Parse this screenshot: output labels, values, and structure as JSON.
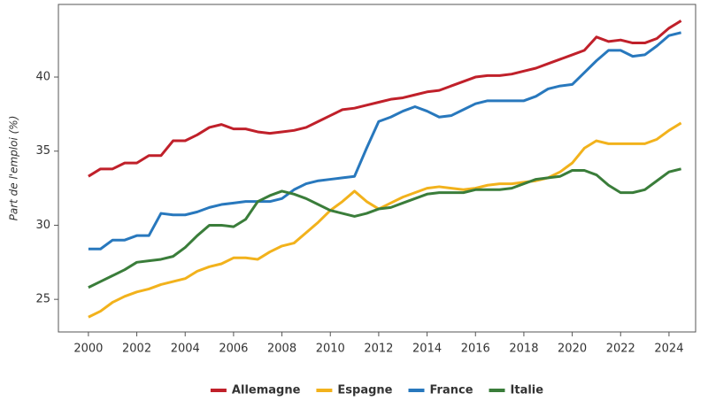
{
  "chart_data": {
    "type": "line",
    "y_label": "Part de l'emploi (%)",
    "x": [
      2000,
      2000.5,
      2001,
      2001.5,
      2002,
      2002.5,
      2003,
      2003.5,
      2004,
      2004.5,
      2005,
      2005.5,
      2006,
      2006.5,
      2007,
      2007.5,
      2008,
      2008.5,
      2009,
      2009.5,
      2010,
      2010.5,
      2011,
      2011.5,
      2012,
      2012.5,
      2013,
      2013.5,
      2014,
      2014.5,
      2015,
      2015.5,
      2016,
      2016.5,
      2017,
      2017.5,
      2018,
      2018.5,
      2019,
      2019.5,
      2020,
      2020.5,
      2021,
      2021.5,
      2022,
      2022.5,
      2023,
      2023.5,
      2024,
      2024.5
    ],
    "series": [
      {
        "name": "Allemagne",
        "color": "#c0202a",
        "values": [
          33.3,
          33.8,
          33.8,
          34.2,
          34.2,
          34.7,
          34.7,
          35.7,
          35.7,
          36.1,
          36.6,
          36.8,
          36.5,
          36.5,
          36.3,
          36.2,
          36.3,
          36.4,
          36.6,
          37.0,
          37.4,
          37.8,
          37.9,
          38.1,
          38.3,
          38.5,
          38.6,
          38.8,
          39.0,
          39.1,
          39.4,
          39.7,
          40.0,
          40.1,
          40.1,
          40.2,
          40.4,
          40.6,
          40.9,
          41.2,
          41.5,
          41.8,
          42.7,
          42.4,
          42.5,
          42.3,
          42.3,
          42.6,
          43.3,
          43.8
        ]
      },
      {
        "name": "Espagne",
        "color": "#f2b21c",
        "values": [
          23.8,
          24.2,
          24.8,
          25.2,
          25.5,
          25.7,
          26.0,
          26.2,
          26.4,
          26.9,
          27.2,
          27.4,
          27.8,
          27.8,
          27.7,
          28.2,
          28.6,
          28.8,
          29.5,
          30.2,
          31.0,
          31.6,
          32.3,
          31.6,
          31.1,
          31.5,
          31.9,
          32.2,
          32.5,
          32.6,
          32.5,
          32.4,
          32.5,
          32.7,
          32.8,
          32.8,
          32.9,
          33.0,
          33.2,
          33.6,
          34.2,
          35.2,
          35.7,
          35.5,
          35.5,
          35.5,
          35.5,
          35.8,
          36.4,
          36.9
        ]
      },
      {
        "name": "France",
        "color": "#2878bd",
        "values": [
          28.4,
          28.4,
          29.0,
          29.0,
          29.3,
          29.3,
          30.8,
          30.7,
          30.7,
          30.9,
          31.2,
          31.4,
          31.5,
          31.6,
          31.6,
          31.6,
          31.8,
          32.4,
          32.8,
          33.0,
          33.1,
          33.2,
          33.3,
          35.2,
          37.0,
          37.3,
          37.7,
          38.0,
          37.7,
          37.3,
          37.4,
          37.8,
          38.2,
          38.4,
          38.4,
          38.4,
          38.4,
          38.7,
          39.2,
          39.4,
          39.5,
          40.3,
          41.1,
          41.8,
          41.8,
          41.4,
          41.5,
          42.1,
          42.8,
          43.0
        ]
      },
      {
        "name": "Italie",
        "color": "#3a7d3a",
        "values": [
          25.8,
          26.2,
          26.6,
          27.0,
          27.5,
          27.6,
          27.7,
          27.9,
          28.5,
          29.3,
          30.0,
          30.0,
          29.9,
          30.4,
          31.6,
          32.0,
          32.3,
          32.1,
          31.8,
          31.4,
          31.0,
          30.8,
          30.6,
          30.8,
          31.1,
          31.2,
          31.5,
          31.8,
          32.1,
          32.2,
          32.2,
          32.2,
          32.4,
          32.4,
          32.4,
          32.5,
          32.8,
          33.1,
          33.2,
          33.3,
          33.7,
          33.7,
          33.4,
          32.7,
          32.2,
          32.2,
          32.4,
          33.0,
          33.6,
          33.8
        ]
      }
    ],
    "xlim": [
      1998.76,
      2025.1
    ],
    "xticks": [
      2000,
      2002,
      2004,
      2006,
      2008,
      2010,
      2012,
      2014,
      2016,
      2018,
      2020,
      2022,
      2024
    ],
    "ylim": [
      22.8,
      44.9
    ],
    "yticks": [
      25,
      30,
      35,
      40
    ],
    "grid": false,
    "legend": "bottom"
  }
}
